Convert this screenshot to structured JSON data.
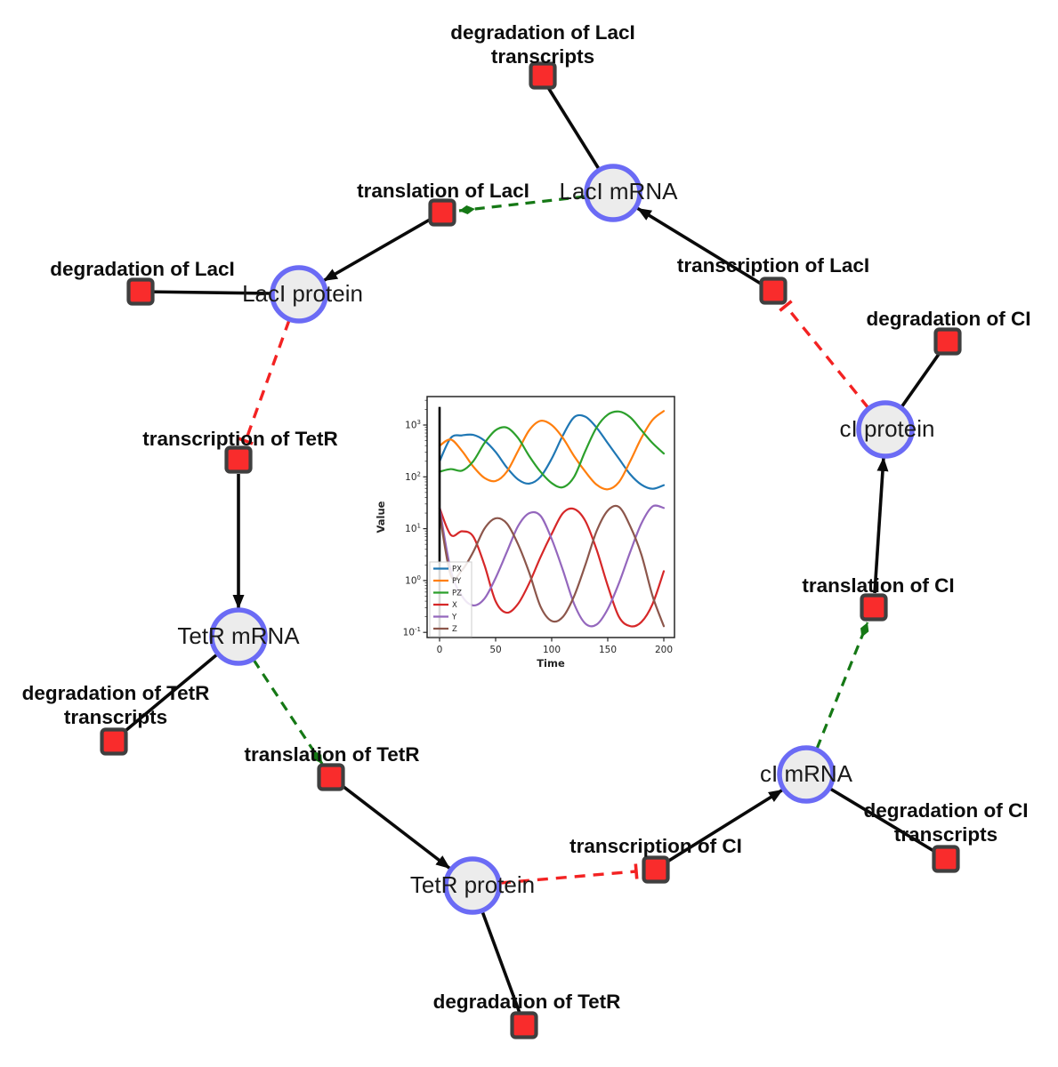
{
  "figure": {
    "description": "Repressilator gene regulatory network diagram with simulation inset",
    "colors": {
      "species_fill": "#ececec",
      "species_stroke": "#6b6bf5",
      "reaction_fill": "#f92c2c",
      "reaction_stroke": "#3f3f3f",
      "catalysis_edge": "#157815",
      "inhibition_edge": "#f32222",
      "plain_edge": "#0a0a0a"
    }
  },
  "species": [
    {
      "label": "LacI mRNA"
    },
    {
      "label": "LacI protein"
    },
    {
      "label": "cI protein"
    },
    {
      "label": "TetR mRNA"
    },
    {
      "label": "cI mRNA"
    },
    {
      "label": "TetR protein"
    }
  ],
  "reactions": [
    {
      "line1": "degradation of LacI",
      "line2": "transcripts"
    },
    {
      "line1": "translation of LacI"
    },
    {
      "line1": "transcription of LacI"
    },
    {
      "line1": "degradation of LacI"
    },
    {
      "line1": "degradation of CI"
    },
    {
      "line1": "transcription of TetR"
    },
    {
      "line1": "translation of CI"
    },
    {
      "line1": "degradation of TetR",
      "line2": "transcripts"
    },
    {
      "line1": "translation of TetR"
    },
    {
      "line1": "degradation of CI",
      "line2": "transcripts"
    },
    {
      "line1": "transcription of CI"
    },
    {
      "line1": "degradation of TetR"
    }
  ],
  "chart_data": {
    "type": "line",
    "title": "",
    "xlabel": "Time",
    "ylabel": "Value",
    "x_ticks": [
      0,
      50,
      100,
      150,
      200
    ],
    "xlim": [
      -11,
      209
    ],
    "y_scale": "log",
    "y_ticks_log10": [
      -1,
      0,
      1,
      2,
      3
    ],
    "ylim_log10": [
      -1.09,
      3.55
    ],
    "grid": false,
    "legend": {
      "position": "lower left",
      "entries": [
        "PX",
        "PY",
        "PZ",
        "X",
        "Y",
        "Z"
      ]
    },
    "initial_spike": {
      "t": 0,
      "from_log10": -1.09,
      "to_log10": 3.35,
      "color": "#000000"
    },
    "x_start": 0,
    "x_step": 10,
    "series": [
      {
        "name": "PX",
        "color": "#1f77b4",
        "y_log10": [
          2.3,
          2.75,
          2.8,
          2.81,
          2.7,
          2.48,
          2.18,
          1.95,
          1.87,
          2.0,
          2.35,
          2.8,
          3.15,
          3.16,
          2.95,
          2.65,
          2.35,
          2.05,
          1.85,
          1.77,
          1.84
        ]
      },
      {
        "name": "PY",
        "color": "#ff7f0e",
        "y_log10": [
          2.6,
          2.72,
          2.5,
          2.2,
          1.98,
          1.92,
          2.1,
          2.5,
          2.9,
          3.08,
          3.0,
          2.75,
          2.4,
          2.1,
          1.85,
          1.76,
          1.9,
          2.3,
          2.75,
          3.1,
          3.27
        ]
      },
      {
        "name": "PZ",
        "color": "#2ca02c",
        "y_log10": [
          2.1,
          2.15,
          2.12,
          2.3,
          2.65,
          2.9,
          2.95,
          2.75,
          2.4,
          2.1,
          1.88,
          1.8,
          2.0,
          2.5,
          2.95,
          3.2,
          3.26,
          3.15,
          2.9,
          2.65,
          2.45
        ]
      },
      {
        "name": "X",
        "color": "#d62728",
        "y_log10": [
          1.4,
          0.88,
          0.95,
          0.85,
          0.3,
          -0.4,
          -0.62,
          -0.45,
          -0.05,
          0.45,
          0.9,
          1.3,
          1.38,
          1.15,
          0.6,
          -0.1,
          -0.7,
          -0.88,
          -0.8,
          -0.45,
          0.18
        ]
      },
      {
        "name": "Y",
        "color": "#9467bd",
        "y_log10": [
          1.4,
          0.2,
          -0.3,
          -0.48,
          -0.35,
          0.05,
          0.55,
          1.05,
          1.3,
          1.25,
          0.8,
          0.2,
          -0.45,
          -0.83,
          -0.85,
          -0.55,
          -0.05,
          0.55,
          1.1,
          1.43,
          1.4
        ]
      },
      {
        "name": "Z",
        "color": "#8c564b",
        "y_log10": [
          1.3,
          0.1,
          0.2,
          0.55,
          1.0,
          1.2,
          1.1,
          0.7,
          0.15,
          -0.5,
          -0.78,
          -0.7,
          -0.3,
          0.3,
          0.95,
          1.35,
          1.42,
          1.05,
          0.5,
          -0.3,
          -0.88
        ]
      }
    ]
  }
}
